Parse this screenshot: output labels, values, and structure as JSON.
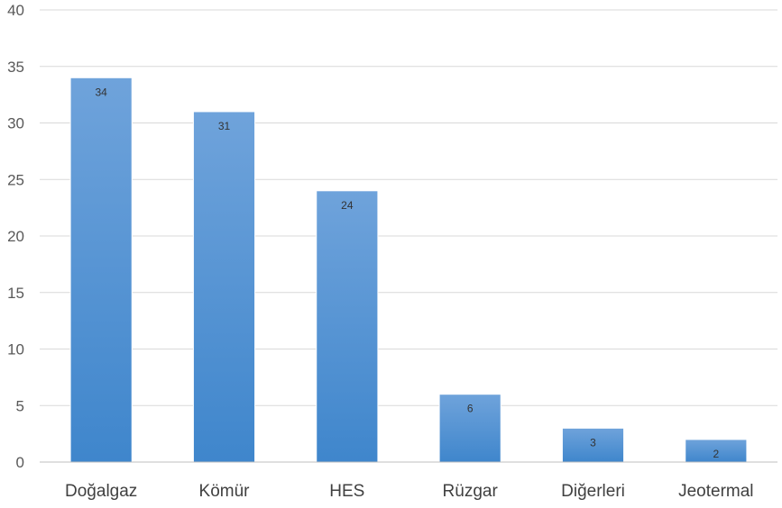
{
  "chart_data": {
    "type": "bar",
    "categories": [
      "Doğalgaz",
      "Kömür",
      "HES",
      "Rüzgar",
      "Diğerleri",
      "Jeotermal"
    ],
    "values": [
      34,
      31,
      24,
      6,
      3,
      2
    ],
    "data_labels": [
      "34",
      "31",
      "24",
      "6",
      "3",
      "2"
    ],
    "title": "",
    "xlabel": "",
    "ylabel": "",
    "ylim": [
      0,
      40
    ],
    "yticks": [
      0,
      5,
      10,
      15,
      20,
      25,
      30,
      35,
      40
    ],
    "ytick_labels": [
      "0",
      "5",
      "10",
      "15",
      "20",
      "25",
      "30",
      "35",
      "40"
    ],
    "grid": true,
    "legend": "none",
    "colors": {
      "bar_top": "#6fa3db",
      "bar_bottom": "#3f86cc",
      "bar_edge": "#ffffff"
    }
  }
}
